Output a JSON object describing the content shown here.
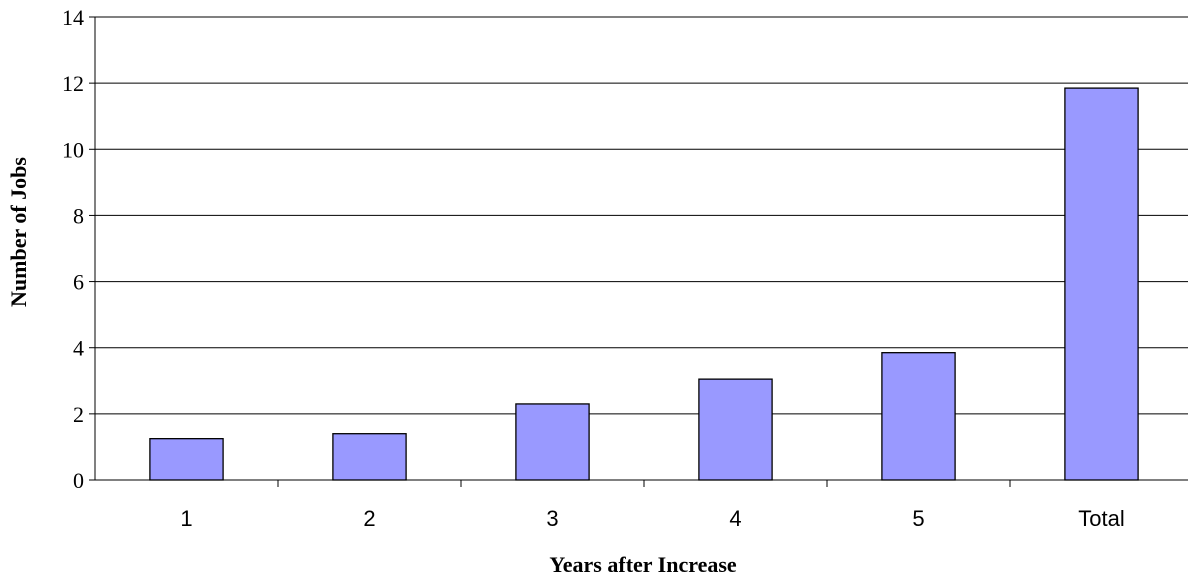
{
  "chart_data": {
    "type": "bar",
    "categories": [
      "1",
      "2",
      "3",
      "4",
      "5",
      "Total"
    ],
    "values": [
      1.25,
      1.4,
      2.3,
      3.05,
      3.85,
      11.85
    ],
    "title": "",
    "xlabel": "Years after Increase",
    "ylabel": "Number of Jobs",
    "ylim": [
      0,
      14
    ],
    "yticks": [
      0,
      2,
      4,
      6,
      8,
      10,
      12,
      14
    ],
    "grid": true,
    "legend": "none",
    "bar_color": "#9999ff",
    "bar_edge_color": "#000000"
  }
}
